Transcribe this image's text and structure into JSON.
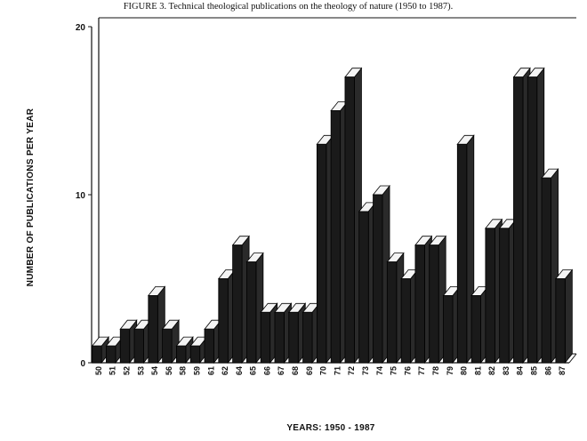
{
  "chart_data": {
    "type": "bar",
    "title": "FIGURE 3.  Technical theological publications on the theology of nature (1950 to 1987).",
    "xlabel": "YEARS: 1950 - 1987",
    "ylabel": "NUMBER OF PUBLICATIONS PER YEAR",
    "ylim": [
      0,
      20
    ],
    "yticks": [
      "0",
      "10",
      "20"
    ],
    "grid": false,
    "legend": "none",
    "bar_color": "#1a1a1a",
    "categories": [
      "50",
      "51",
      "52",
      "53",
      "54",
      "56",
      "58",
      "59",
      "61",
      "62",
      "64",
      "65",
      "66",
      "67",
      "68",
      "69",
      "70",
      "71",
      "72",
      "73",
      "74",
      "75",
      "76",
      "77",
      "78",
      "79",
      "80",
      "81",
      "82",
      "83",
      "84",
      "85",
      "86",
      "87"
    ],
    "values": [
      1,
      1,
      2,
      2,
      4,
      2,
      1,
      1,
      2,
      5,
      7,
      6,
      3,
      3,
      3,
      3,
      13,
      15,
      17,
      9,
      10,
      6,
      5,
      7,
      7,
      4,
      13,
      4,
      8,
      8,
      17,
      17,
      11,
      5
    ]
  }
}
